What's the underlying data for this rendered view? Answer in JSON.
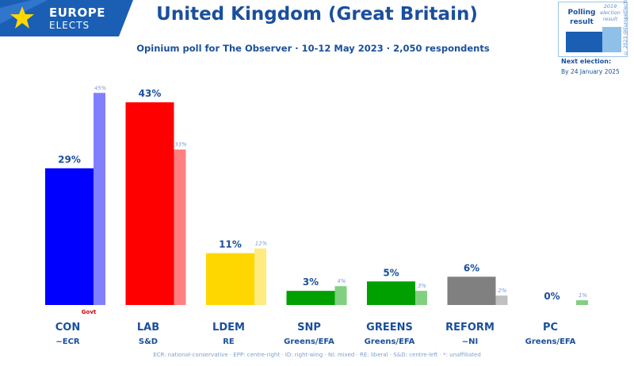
{
  "brand": {
    "line1": "EUROPE",
    "line2": "ELECTS"
  },
  "title": "United Kingdom (Great Britain)",
  "subtitle": "Opinium poll for The Observer · 10-12 May 2023 · 2,050 respondents",
  "legend": {
    "poll_label": "Polling result",
    "prev_label": "2019 election result",
    "copyright": "© 2023 @EuropeElects",
    "next_election_label": "Next election:",
    "next_election_date": "By 24 January 2025"
  },
  "footnote": "ECR: national-conservative · EPP: centre-right · ID: right-wing · NI: mixed · RE: liberal · S&D: centre-left · *: unaffiliated",
  "chart_data": {
    "type": "bar",
    "title": "United Kingdom (Great Britain)",
    "ylim": [
      0,
      50
    ],
    "series": [
      {
        "name": "Polling result",
        "values": [
          29,
          43,
          11,
          3,
          5,
          6,
          0
        ]
      },
      {
        "name": "2019 election result",
        "values": [
          45,
          33,
          12,
          4,
          3,
          2,
          1
        ]
      }
    ],
    "parties": [
      {
        "name": "CON",
        "group": "~ECR",
        "value": 29,
        "value_label": "29%",
        "prev": 45,
        "prev_label": "45%",
        "color": "#0000ff",
        "prev_color": "#8080ff",
        "note": "Govt"
      },
      {
        "name": "LAB",
        "group": "S&D",
        "value": 43,
        "value_label": "43%",
        "prev": 33,
        "prev_label": "33%",
        "color": "#ff0000",
        "prev_color": "#ff8080"
      },
      {
        "name": "LDEM",
        "group": "RE",
        "value": 11,
        "value_label": "11%",
        "prev": 12,
        "prev_label": "12%",
        "color": "#ffd700",
        "prev_color": "#ffeb80"
      },
      {
        "name": "SNP",
        "group": "Greens/EFA",
        "value": 3,
        "value_label": "3%",
        "prev": 4,
        "prev_label": "4%",
        "color": "#00a000",
        "prev_color": "#80d080"
      },
      {
        "name": "GREENS",
        "group": "Greens/EFA",
        "value": 5,
        "value_label": "5%",
        "prev": 3,
        "prev_label": "3%",
        "color": "#00a000",
        "prev_color": "#80d080"
      },
      {
        "name": "REFORM",
        "group": "~NI",
        "value": 6,
        "value_label": "6%",
        "prev": 2,
        "prev_label": "2%",
        "color": "#808080",
        "prev_color": "#c0c0c0"
      },
      {
        "name": "PC",
        "group": "Greens/EFA",
        "value": 0,
        "value_label": "0%",
        "prev": 1,
        "prev_label": "1%",
        "color": "#00a000",
        "prev_color": "#80d080"
      }
    ]
  }
}
